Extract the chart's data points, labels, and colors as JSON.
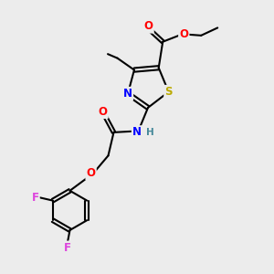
{
  "bg_color": "#ececec",
  "bond_color": "#000000",
  "atom_colors": {
    "O": "#ff0000",
    "N": "#0000ff",
    "S": "#bbaa00",
    "F": "#dd44dd",
    "H": "#448899",
    "C": "#000000"
  },
  "font_size": 8.5,
  "bond_width": 1.5,
  "lw": 1.5
}
